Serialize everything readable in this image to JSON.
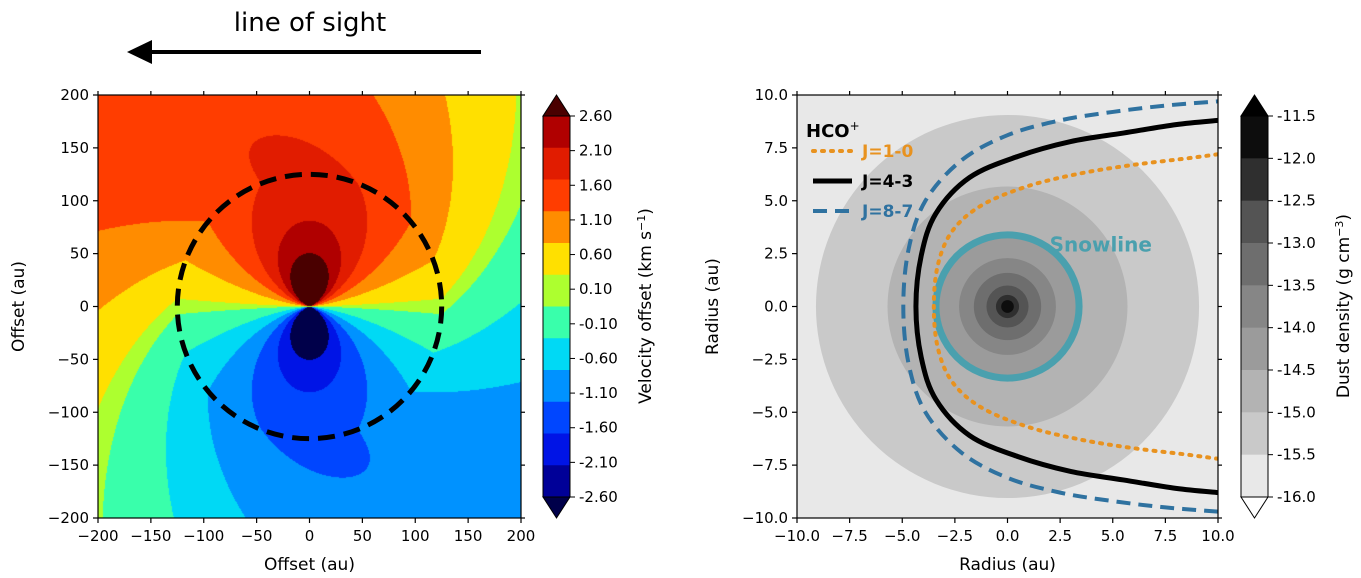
{
  "header": {
    "annotation": "line of sight"
  },
  "chart_data": [
    {
      "type": "heatmap",
      "title": "",
      "xlabel": "Offset (au)",
      "ylabel": "Offset (au)",
      "xlim": [
        -200,
        200
      ],
      "ylim": [
        -200,
        200
      ],
      "xticks": [
        "−200",
        "−150",
        "−100",
        "−50",
        "0",
        "50",
        "100",
        "150",
        "200"
      ],
      "yticks": [
        "200",
        "150",
        "100",
        "50",
        "0",
        "−50",
        "−100",
        "−150",
        "−200"
      ],
      "colorbar": {
        "label": "Velocity offset (km s",
        "label_sup": "−1",
        "label_tail": ")",
        "levels": [
          "2.60",
          "2.10",
          "1.60",
          "1.10",
          "0.60",
          "0.10",
          "-0.10",
          "-0.60",
          "-1.10",
          "-1.60",
          "-2.10",
          "-2.60"
        ],
        "colors": [
          "#b00000",
          "#e11c00",
          "#ff3d00",
          "#ff8c00",
          "#ffe000",
          "#adff2f",
          "#39ffab",
          "#00d9f5",
          "#0092ff",
          "#0046ff",
          "#0014e6",
          "#000098"
        ],
        "extend_top": "#4a0000",
        "extend_bottom": "#00004a"
      },
      "circle_radius": 125,
      "velocity_field": {
        "vmax": 3.0,
        "r0": 12,
        "exponent": 0.5,
        "line_of_sight": "-x"
      }
    },
    {
      "type": "heatmap",
      "title": "",
      "xlabel": "Radius (au)",
      "ylabel": "Radius (au)",
      "xlim": [
        -10,
        10
      ],
      "ylim": [
        -10,
        10
      ],
      "xticks": [
        "−10.0",
        "−7.5",
        "−5.0",
        "−2.5",
        "0.0",
        "2.5",
        "5.0",
        "7.5",
        "10.0"
      ],
      "yticks": [
        "10.0",
        "7.5",
        "5.0",
        "2.5",
        "0.0",
        "−2.5",
        "−5.0",
        "−7.5",
        "−10.0"
      ],
      "density_rings": [
        {
          "radius": 9.1,
          "color": "#c9c9c9"
        },
        {
          "radius": 5.7,
          "color": "#b3b3b3"
        },
        {
          "radius": 3.4,
          "color": "#9b9b9b"
        },
        {
          "radius": 2.3,
          "color": "#868686"
        },
        {
          "radius": 1.6,
          "color": "#6e6e6e"
        },
        {
          "radius": 1.0,
          "color": "#545454"
        },
        {
          "radius": 0.55,
          "color": "#2f2f2f"
        },
        {
          "radius": 0.3,
          "color": "#0d0d0d"
        }
      ],
      "background": "#e8e8e8",
      "snowline": {
        "label": "Snowline",
        "radius": 3.4,
        "color": "#4aa0ae"
      },
      "legend": {
        "title": "HCO",
        "title_sup": "+",
        "entries": [
          {
            "label": "J=1-0",
            "color": "#e8921f",
            "style": "dotted"
          },
          {
            "label": "J=4-3",
            "color": "#000000",
            "style": "solid"
          },
          {
            "label": "J=8-7",
            "color": "#2f72a0",
            "style": "dashed"
          }
        ]
      },
      "contours": [
        {
          "name": "J=1-0",
          "x": [
            -3.5,
            -3.3,
            -2.6,
            -1.2,
            1.0,
            3.5,
            6.0,
            8.5,
            10.0
          ],
          "y": [
            0,
            2.0,
            3.6,
            4.8,
            5.7,
            6.3,
            6.7,
            7.0,
            7.2
          ],
          "color": "#e8921f",
          "style": "dotted"
        },
        {
          "name": "J=4-3",
          "x": [
            -4.35,
            -4.1,
            -3.4,
            -1.8,
            0.5,
            3.0,
            5.5,
            8.0,
            10.0
          ],
          "y": [
            0,
            2.4,
            4.4,
            6.1,
            7.1,
            7.8,
            8.2,
            8.6,
            8.8
          ],
          "color": "#000000",
          "style": "solid"
        },
        {
          "name": "J=8-7",
          "x": [
            -4.95,
            -4.7,
            -3.9,
            -2.2,
            0.0,
            2.5,
            5.0,
            7.5,
            10.0
          ],
          "y": [
            0,
            2.7,
            5.0,
            6.9,
            8.1,
            8.8,
            9.2,
            9.5,
            9.7
          ],
          "color": "#2f72a0",
          "style": "dashed"
        }
      ],
      "colorbar": {
        "label": "Dust density (g cm",
        "label_sup": "−3",
        "label_tail": ")",
        "levels": [
          "-11.5",
          "-12.0",
          "-12.5",
          "-13.0",
          "-13.5",
          "-14.0",
          "-14.5",
          "-15.0",
          "-15.5",
          "-16.0"
        ],
        "colors": [
          "#0d0d0d",
          "#2f2f2f",
          "#545454",
          "#6e6e6e",
          "#868686",
          "#9b9b9b",
          "#b3b3b3",
          "#c9c9c9",
          "#e8e8e8"
        ],
        "extend_top": "#000000",
        "extend_bottom": "#ffffff"
      }
    }
  ]
}
